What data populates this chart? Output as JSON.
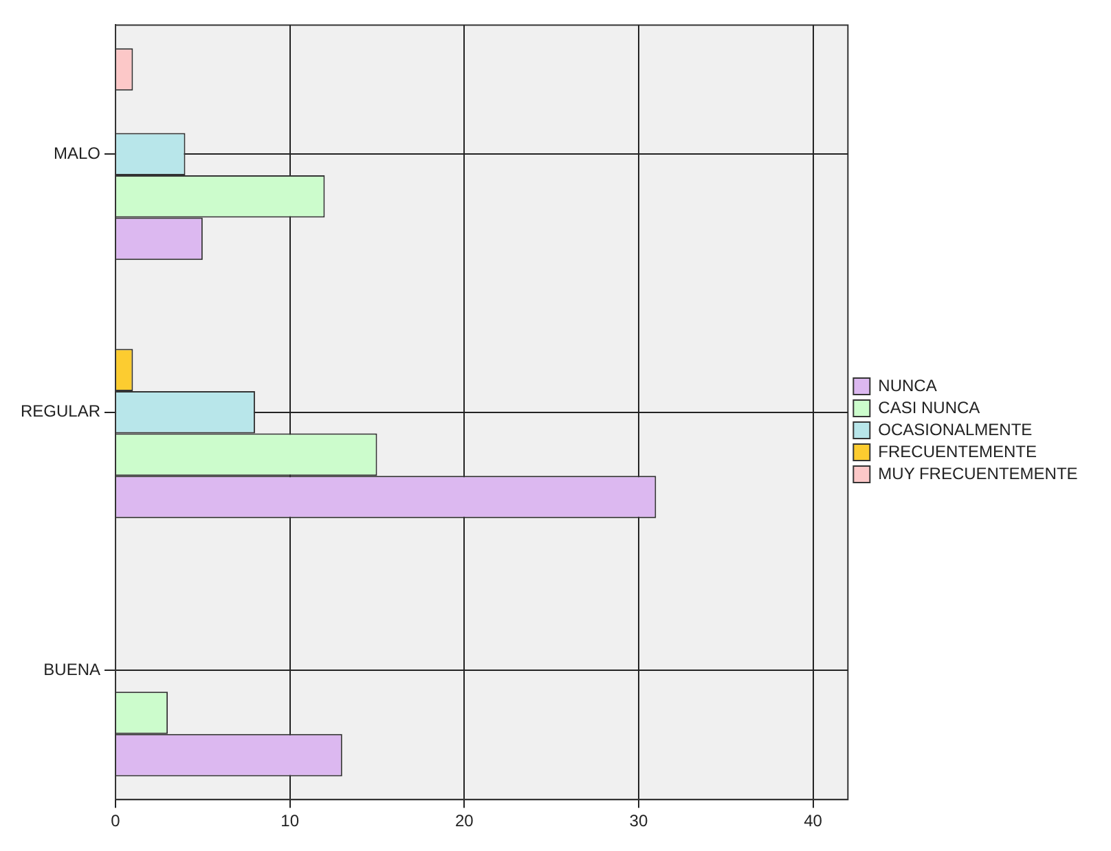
{
  "chart_data": {
    "type": "bar",
    "orientation": "horizontal",
    "categories": [
      "MALO",
      "REGULAR",
      "BUENA"
    ],
    "series": [
      {
        "name": "NUNCA",
        "color": "#dcb8f0",
        "values": [
          5,
          31,
          13
        ]
      },
      {
        "name": "CASI NUNCA",
        "color": "#ccfccc",
        "values": [
          12,
          15,
          3
        ]
      },
      {
        "name": "OCASIONALMENTE",
        "color": "#b8e6ea",
        "values": [
          4,
          8,
          null
        ]
      },
      {
        "name": "FRECUENTEMENTE",
        "color": "#fccc30",
        "values": [
          null,
          1,
          null
        ]
      },
      {
        "name": "MUY FRECUENTEMENTE",
        "color": "#fcc8c8",
        "values": [
          1,
          null,
          null
        ]
      }
    ],
    "xlim": [
      0,
      42
    ],
    "xticks": [
      0,
      10,
      20,
      30,
      40
    ],
    "grid": true,
    "legend": "right"
  }
}
